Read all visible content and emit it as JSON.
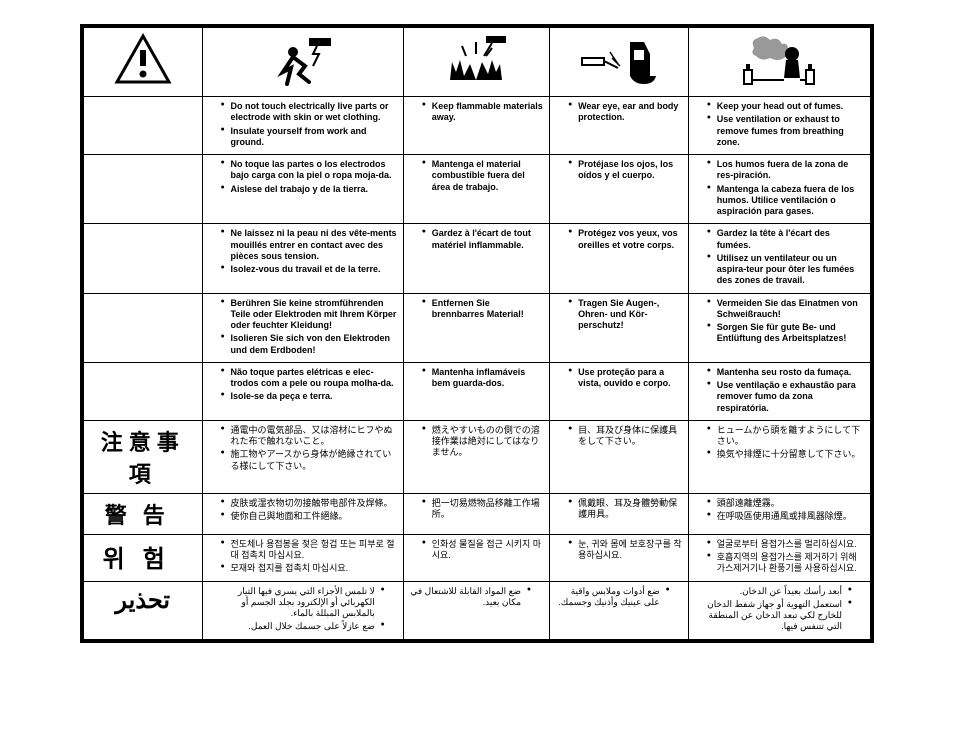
{
  "columns": [
    "warning-triangle",
    "electric-shock",
    "fire-explosion",
    "eye-protection",
    "fumes"
  ],
  "rows": [
    {
      "head": "",
      "cells": [
        [
          "Do not touch electrically live parts or electrode with skin or wet clothing.",
          "Insulate yourself from work and ground."
        ],
        [
          "Keep flammable materials away."
        ],
        [
          "Wear eye, ear and body protection."
        ],
        [
          "Keep your head out of fumes.",
          "Use ventilation or exhaust to remove fumes from breathing zone."
        ]
      ]
    },
    {
      "head": "",
      "cells": [
        [
          "No toque las partes o los electrodos bajo carga con la piel o ropa moja-da.",
          "Aislese del trabajo y de la tierra."
        ],
        [
          "Mantenga el material combustible fuera del área de trabajo."
        ],
        [
          "Protéjase los ojos, los oídos y el cuerpo."
        ],
        [
          "Los humos fuera de la zona de res-piración.",
          "Mantenga la cabeza fuera de los humos. Utilice ventilación o aspiración para gases."
        ]
      ]
    },
    {
      "head": "",
      "cells": [
        [
          "Ne laissez ni la peau ni des vête-ments mouillés entrer en contact avec des pièces sous tension.",
          "Isolez-vous du travail et de la terre."
        ],
        [
          "Gardez à l'écart de tout matériel inflammable."
        ],
        [
          "Protégez vos yeux, vos oreilles et votre corps."
        ],
        [
          "Gardez la tête à l'écart des fumées.",
          "Utilisez un ventilateur ou un aspira-teur pour ôter les fumées des zones de travail."
        ]
      ]
    },
    {
      "head": "",
      "cells": [
        [
          "Berühren Sie keine stromführenden Teile oder Elektroden mit Ihrem Körper oder feuchter Kleidung!",
          "Isolieren Sie sich von den Elektroden und dem Erdboden!"
        ],
        [
          "Entfernen Sie brennbarres Material!"
        ],
        [
          "Tragen Sie Augen-, Ohren- und Kör-perschutz!"
        ],
        [
          "Vermeiden Sie das Einatmen von Schweißrauch!",
          "Sorgen Sie für gute Be- und Entlüftung des Arbeitsplatzes!"
        ]
      ]
    },
    {
      "head": "",
      "cells": [
        [
          "Não toque partes elétricas e elec-trodos com a pele ou roupa molha-da.",
          "Isole-se da peça e terra."
        ],
        [
          "Mantenha inflamáveis bem guarda-dos."
        ],
        [
          "Use proteção para a vista, ouvido e corpo."
        ],
        [
          "Mantenha seu rosto da fumaça.",
          "Use ventilação e exhaustão para remover fumo da zona respiratória."
        ]
      ]
    },
    {
      "head": "注意事項",
      "headClass": "lang-ja",
      "cjk": true,
      "cells": [
        [
          "通電中の電気部品、又は溶材にヒフやぬれた布で触れないこと。",
          "施工物やアースから身体が絶縁されている様にして下さい。"
        ],
        [
          "燃えやすいものの側での溶接作業は絶対にしてはなりません。"
        ],
        [
          "目、耳及び身体に保護具をして下さい。"
        ],
        [
          "ヒュームから頭を離すようにして下さい。",
          "換気や排煙に十分留意して下さい。"
        ]
      ]
    },
    {
      "head": "警告",
      "headClass": "lang-zh",
      "cjk": true,
      "cells": [
        [
          "皮肤或湿衣物切勿接触带电部件及焊條。",
          "使你自己與地面和工件絕緣。"
        ],
        [
          "把一切易燃物品移離工作場所。"
        ],
        [
          "佩戴眼、耳及身體勞動保護用具。"
        ],
        [
          "頭部遠離煙霧。",
          "在呼吸區使用通風或排風器除煙。"
        ]
      ]
    },
    {
      "head": "위험",
      "headClass": "lang-ko",
      "cjk": true,
      "cells": [
        [
          "전도체나 용접봉을 젖은 헝겁 또는 피부로 절대 접촉치 마십시요.",
          "모재와 접지를 접촉치 마십시요."
        ],
        [
          "인화성 물질을 접근 시키지 마시요."
        ],
        [
          "눈, 귀와 몸에 보호장구를 착용하십시요."
        ],
        [
          "얼굴로부터 용접가스를 멀리하십시요.",
          "호흡지역의 용접가스를 제거하기 위해 가스제거기나 환풍기를 사용하십시요."
        ]
      ]
    },
    {
      "head": "تحذير",
      "headClass": "lang-ar",
      "ar": true,
      "cells": [
        [
          "لا تلمس الأجزاء التي يسري فيها التيار الكهربائي أو الإلكترود بجلد الجسم أو بالملابس المبللة بالماء.",
          "ضع عازلاً على جسمك خلال العمل."
        ],
        [
          "ضع المواد القابلة للاشتعال في مكان بعيد."
        ],
        [
          "ضع أدوات وملابس واقية على عينيك وأذنيك وجسمك."
        ],
        [
          "أبعد رأسك بعيداً عن الدخان.",
          "استعمل التهوية أو جهاز شفط الدخان للخارج لكي تبعد الدخان عن المنطقة التي تتنفس فيها."
        ]
      ]
    }
  ]
}
